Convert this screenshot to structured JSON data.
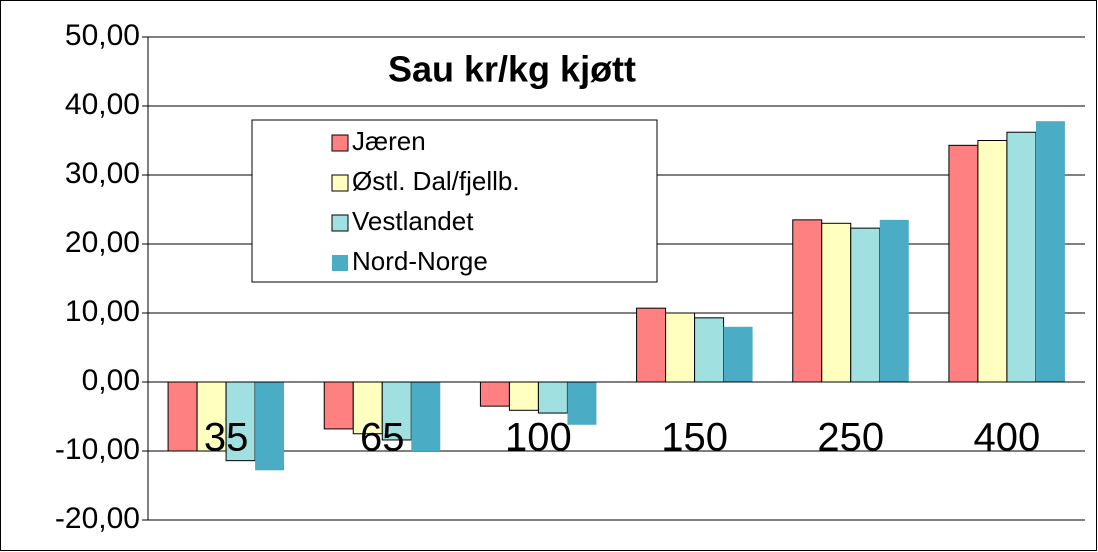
{
  "chart_data": {
    "type": "bar",
    "title": "Sau kr/kg kjøtt",
    "categories": [
      "35",
      "65",
      "100",
      "150",
      "250",
      "400"
    ],
    "series": [
      {
        "name": "Jæren",
        "color": "#ff8080",
        "values": [
          -10,
          -6.8,
          -3.5,
          10.7,
          23.5,
          34.3
        ]
      },
      {
        "name": "Østl. Dal/fjellb.",
        "color": "#ffffc0",
        "values": [
          -10,
          -7.5,
          -4.1,
          10,
          23,
          35
        ]
      },
      {
        "name": "Vestlandet",
        "color": "#a0e0e0",
        "values": [
          -11.4,
          -8.4,
          -4.5,
          9.3,
          22.3,
          36.2
        ]
      },
      {
        "name": "Nord-Norge",
        "color": "#4bacc6",
        "values": [
          -12.8,
          -10,
          -6.2,
          8,
          23.5,
          37.8
        ]
      }
    ],
    "ylim": [
      -20,
      50
    ],
    "yticks": [
      {
        "value": -20,
        "label": "-20,00"
      },
      {
        "value": -10,
        "label": "-10,00"
      },
      {
        "value": 0,
        "label": "0,00"
      },
      {
        "value": 10,
        "label": "10,00"
      },
      {
        "value": 20,
        "label": "20,00"
      },
      {
        "value": 30,
        "label": "30,00"
      },
      {
        "value": 40,
        "label": "40,00"
      },
      {
        "value": 50,
        "label": "50,00"
      }
    ],
    "grid": true
  }
}
